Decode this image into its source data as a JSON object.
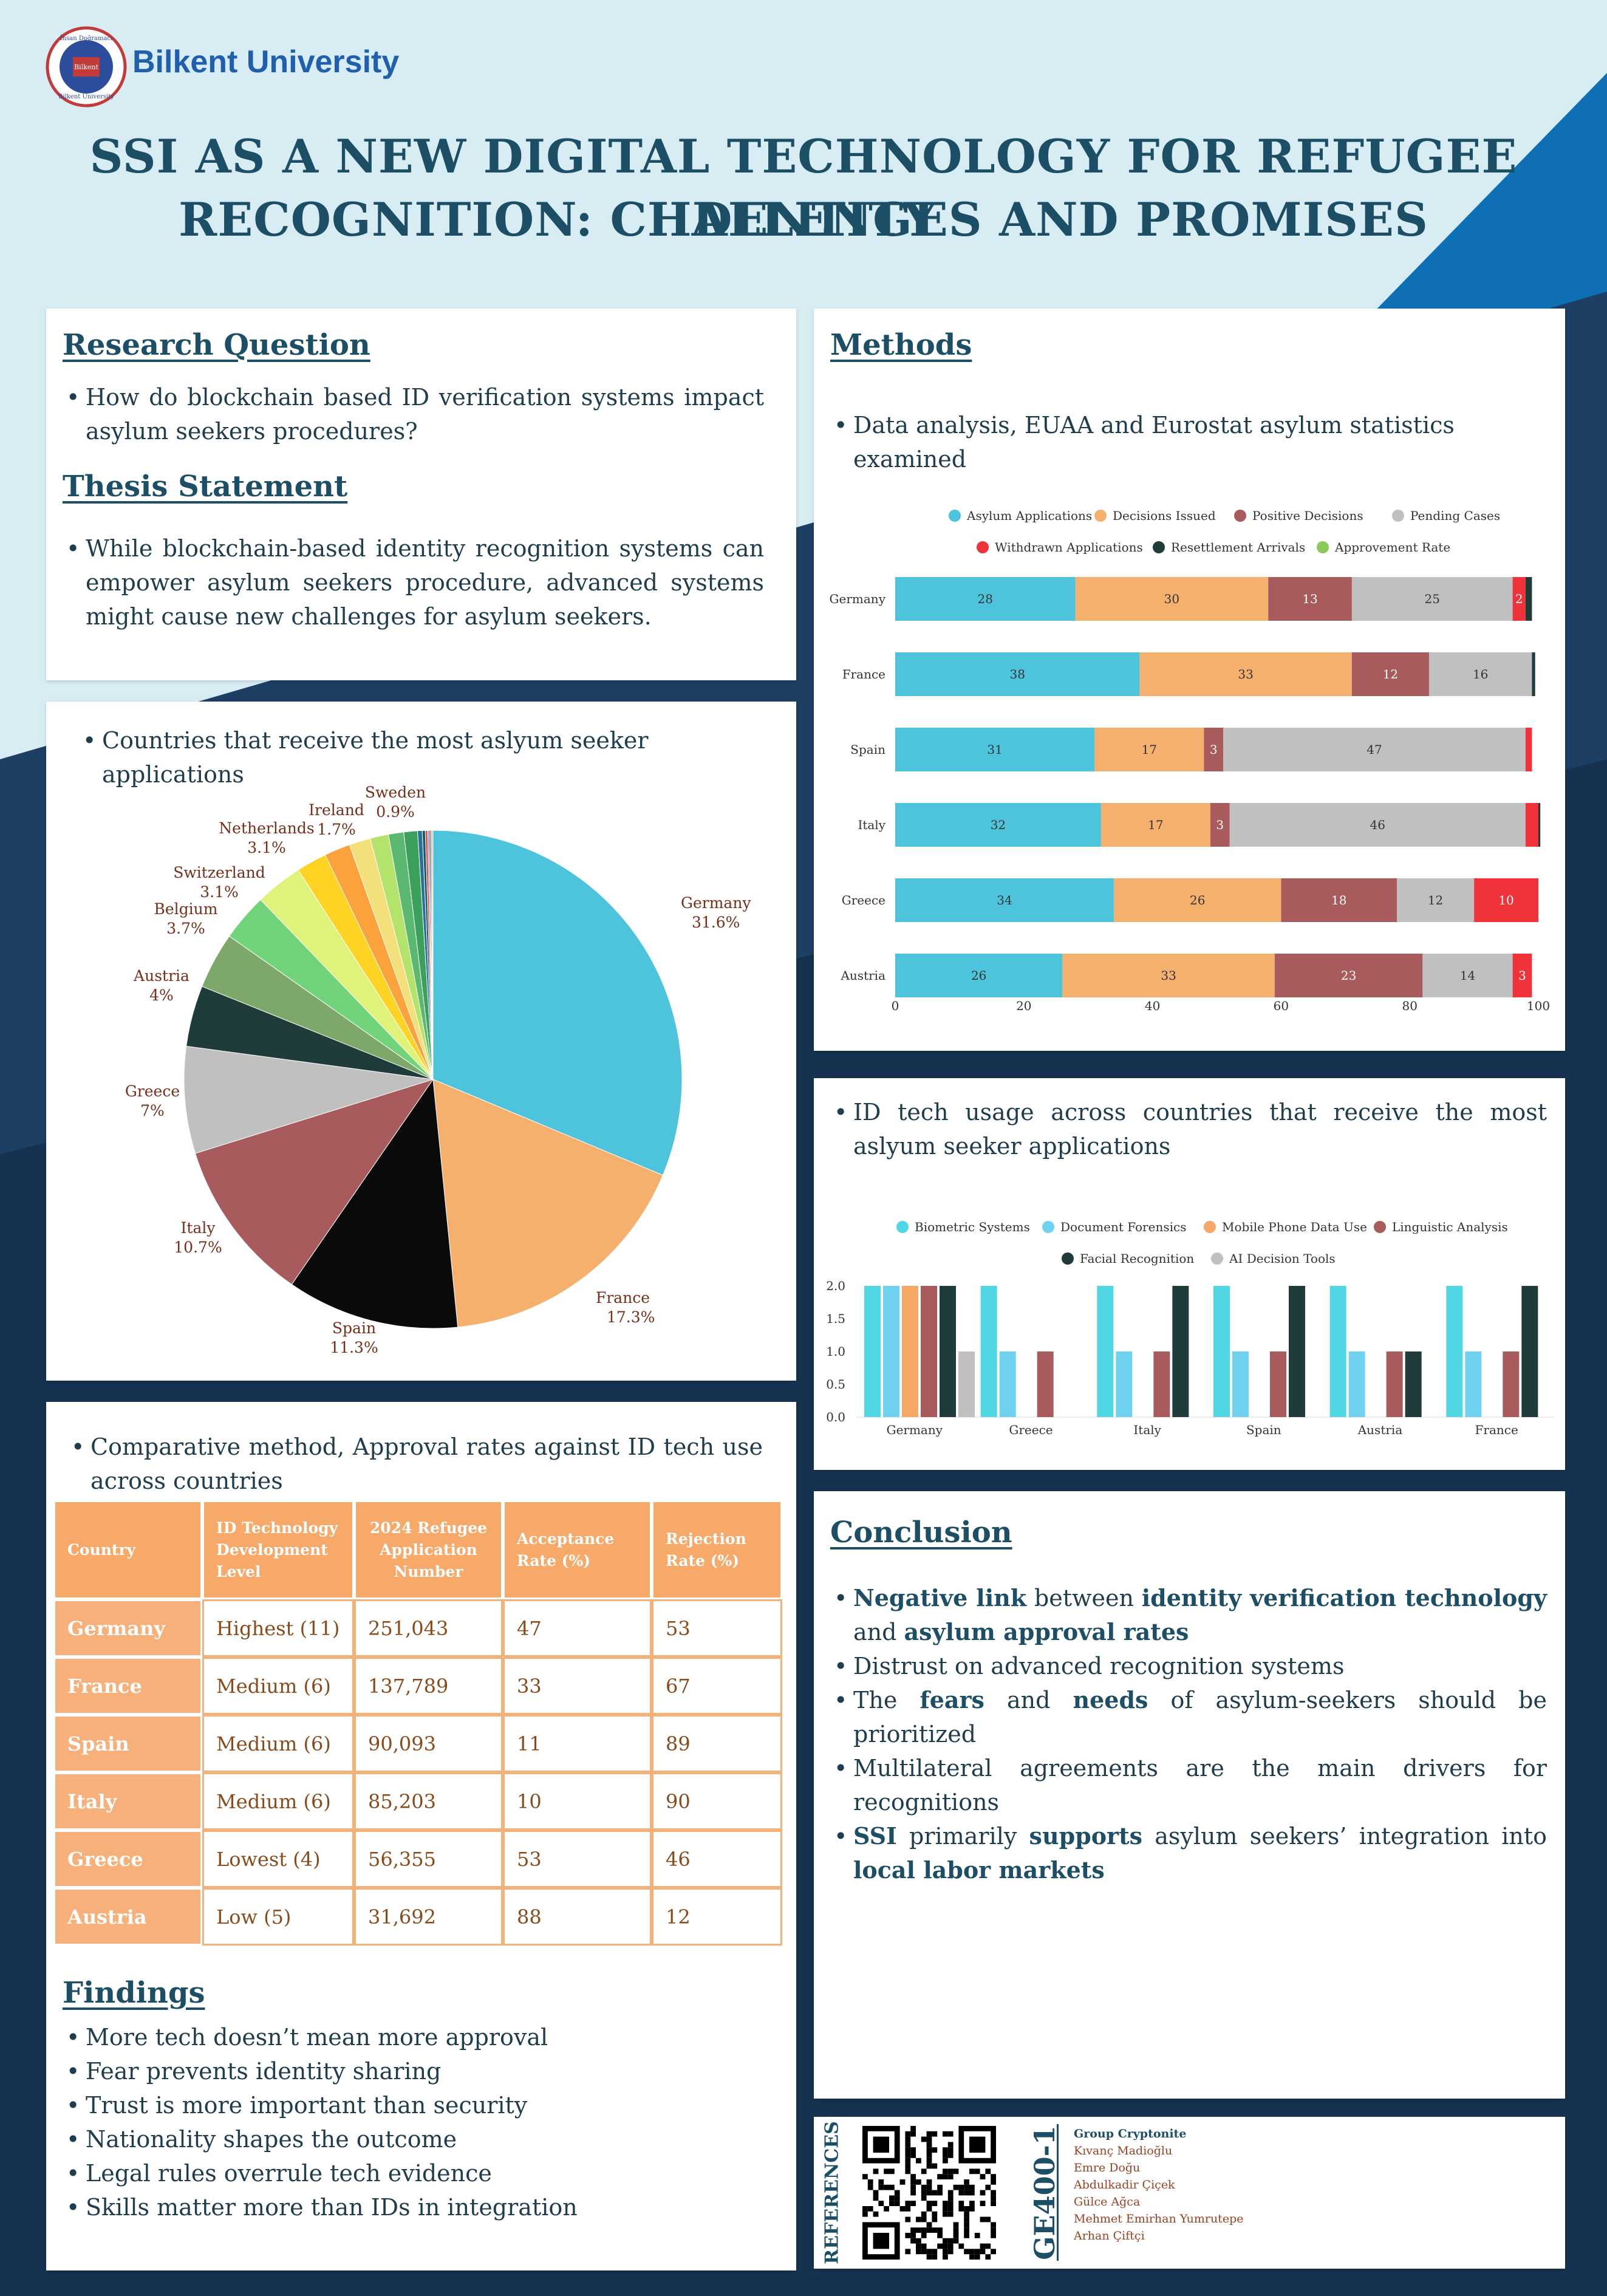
{
  "header": {
    "university": "Bilkent University",
    "logo_text": [
      "İhsan Doğramacı",
      "Bilkent",
      "Bilkent University"
    ],
    "title_lines": [
      "SSI AS A NEW DIGITAL TECHNOLOGY FOR REFUGEE IDENTITY",
      "RECOGNITION: CHALLENGES AND PROMISES"
    ]
  },
  "research": {
    "rq_heading": "Research Question",
    "rq_text": "How do blockchain based ID verification systems impact asylum seekers procedures?",
    "thesis_heading": "Thesis Statement",
    "thesis_text": "While blockchain-based identity recognition systems can empower asylum seekers procedure, advanced systems might cause new challenges for asylum seekers."
  },
  "pie_section": {
    "bullet": "Countries that receive the most aslyum seeker applications"
  },
  "methods": {
    "heading": "Methods",
    "bullet": "Data analysis, EUAA and Eurostat asylum statistics examined"
  },
  "idtech_section": {
    "bullet": "ID tech usage across countries that receive the most aslyum seeker applications"
  },
  "comparative": {
    "bullet": "Comparative method, Approval rates against ID tech use across countries",
    "headers": [
      "Country",
      "ID Technology Development Level",
      "2024 Refugee Application Number",
      "Acceptance Rate (%)",
      "Rejection Rate (%)"
    ],
    "rows": [
      [
        "Germany",
        "Highest (11)",
        "251,043",
        "47",
        "53"
      ],
      [
        "France",
        "Medium (6)",
        "137,789",
        "33",
        "67"
      ],
      [
        "Spain",
        "Medium (6)",
        "90,093",
        "11",
        "89"
      ],
      [
        "Italy",
        "Medium (6)",
        "85,203",
        "10",
        "90"
      ],
      [
        "Greece",
        "Lowest (4)",
        "56,355",
        "53",
        "46"
      ],
      [
        "Austria",
        "Low (5)",
        "31,692",
        "88",
        "12"
      ]
    ]
  },
  "findings": {
    "heading": "Findings",
    "items": [
      "More tech doesn’t mean more approval",
      "Fear prevents identity sharing",
      "Trust is more important than security",
      "Nationality shapes the outcome",
      "Legal rules overrule tech evidence",
      "Skills matter more than IDs in integration"
    ]
  },
  "conclusion": {
    "heading": "Conclusion",
    "items": [
      [
        {
          "t": "Negative link",
          "b": true
        },
        {
          "t": " between ",
          "b": false
        },
        {
          "t": "identity verification technology",
          "b": true
        },
        {
          "t": " and ",
          "b": false
        },
        {
          "t": "asylum approval rates",
          "b": true
        }
      ],
      [
        {
          "t": "Distrust on advanced recognition systems",
          "b": false
        }
      ],
      [
        {
          "t": "The ",
          "b": false
        },
        {
          "t": "fears",
          "b": true
        },
        {
          "t": " and ",
          "b": false
        },
        {
          "t": "needs",
          "b": true
        },
        {
          "t": " of asylum-seekers should be prioritized",
          "b": false
        }
      ],
      [
        {
          "t": "Multilateral agreements are the main drivers for recognitions",
          "b": false
        }
      ],
      [
        {
          "t": "SSI",
          "b": true
        },
        {
          "t": " primarily ",
          "b": false
        },
        {
          "t": "supports",
          "b": true
        },
        {
          "t": " asylum seekers’ integration into ",
          "b": false
        },
        {
          "t": "local labor markets",
          "b": true
        }
      ]
    ]
  },
  "references": {
    "label": "REFERENCES",
    "course": "GE400-1",
    "group": "Group Cryptonite",
    "names": [
      "Kıvanç Madioğlu",
      "Emre Doğu",
      "Abdulkadir Çiçek",
      "Gülce Ağca",
      "Mehmet Emirhan Yumrutepe",
      "Arhan Çiftçi"
    ]
  },
  "chart_data": [
    {
      "type": "pie",
      "slices": [
        {
          "label": "Germany",
          "value": 31.6,
          "color": "#4dc3dc"
        },
        {
          "label": "France",
          "value": 17.3,
          "color": "#f6b06e"
        },
        {
          "label": "Spain",
          "value": 11.3,
          "color": "#0a0a0a"
        },
        {
          "label": "Italy",
          "value": 10.7,
          "color": "#a85a5c"
        },
        {
          "label": "Greece",
          "value": 7,
          "color": "#c0c0c0"
        },
        {
          "label": "Austria",
          "value": 4,
          "color": "#1f3b3a"
        },
        {
          "label": "Belgium",
          "value": 3.7,
          "color": "#7ea86a"
        },
        {
          "label": "Switzerland",
          "value": 3.1,
          "color": "#72d47a"
        },
        {
          "label": "Netherlands",
          "value": 3.1,
          "color": "#dff27a"
        },
        {
          "label": "",
          "value": 2.0,
          "color": "#ffd324"
        },
        {
          "label": "Ireland",
          "value": 1.7,
          "color": "#fca23c"
        },
        {
          "label": "",
          "value": 1.4,
          "color": "#f3e07a"
        },
        {
          "label": "",
          "value": 1.2,
          "color": "#b3e36a"
        },
        {
          "label": "",
          "value": 1.0,
          "color": "#5bb870"
        },
        {
          "label": "Sweden",
          "value": 0.9,
          "color": "#3aa05a"
        },
        {
          "label": "",
          "value": 0.3,
          "color": "#2a6e9c"
        },
        {
          "label": "",
          "value": 0.2,
          "color": "#16596b"
        },
        {
          "label": "",
          "value": 0.15,
          "color": "#e04a3a"
        },
        {
          "label": "",
          "value": 0.1,
          "color": "#9a7ad0"
        },
        {
          "label": "",
          "value": 0.1,
          "color": "#555555"
        },
        {
          "label": "",
          "value": 0.08,
          "color": "#f57a2a"
        },
        {
          "label": "",
          "value": 0.07,
          "color": "#5ac0e0"
        }
      ],
      "labels_printed": [
        {
          "name": "Germany",
          "pct": "31.6%"
        },
        {
          "name": "France",
          "pct": "17.3%"
        },
        {
          "name": "Spain",
          "pct": "11.3%"
        },
        {
          "name": "Italy",
          "pct": "10.7%"
        },
        {
          "name": "Greece",
          "pct": "7%"
        },
        {
          "name": "Austria",
          "pct": "4%"
        },
        {
          "name": "Belgium",
          "pct": "3.7%"
        },
        {
          "name": "Switzerland",
          "pct": "3.1%"
        },
        {
          "name": "Netherlands",
          "pct": "3.1%"
        },
        {
          "name": "Ireland",
          "pct": "1.7%"
        },
        {
          "name": "Sweden",
          "pct": "0.9%"
        }
      ]
    },
    {
      "type": "bar",
      "orientation": "horizontal-stacked",
      "categories": [
        "Germany",
        "France",
        "Spain",
        "Italy",
        "Greece",
        "Austria"
      ],
      "series": [
        {
          "name": "Asylum Applications",
          "color": "#4dc3dc",
          "values": [
            28,
            38,
            31,
            32,
            34,
            26
          ]
        },
        {
          "name": "Decisions Issued",
          "color": "#f6b06e",
          "values": [
            30,
            33,
            17,
            17,
            26,
            33
          ]
        },
        {
          "name": "Positive Decisions",
          "color": "#a85a5c",
          "values": [
            13,
            12,
            3,
            3,
            18,
            23
          ]
        },
        {
          "name": "Pending Cases",
          "color": "#c0c0c0",
          "values": [
            25,
            16,
            47,
            46,
            12,
            14
          ]
        },
        {
          "name": "Withdrawn Applications",
          "color": "#f0333a",
          "values": [
            2,
            0,
            1,
            2,
            10,
            3
          ]
        },
        {
          "name": "Resettlement Arrivals",
          "color": "#1f3b3a",
          "values": [
            1,
            0.5,
            0,
            0.3,
            0,
            0
          ]
        },
        {
          "name": "Approvement Rate",
          "color": "#8cc85a",
          "values": [
            0,
            0,
            0,
            0,
            0,
            0
          ]
        }
      ],
      "show_labels": [
        [
          true,
          true,
          true,
          true,
          true,
          false,
          false
        ],
        [
          true,
          true,
          true,
          true,
          false,
          false,
          false
        ],
        [
          true,
          true,
          true,
          true,
          false,
          false,
          false
        ],
        [
          true,
          true,
          true,
          true,
          false,
          false,
          false
        ],
        [
          true,
          true,
          true,
          true,
          true,
          false,
          false
        ],
        [
          true,
          true,
          true,
          true,
          true,
          false,
          false
        ]
      ],
      "xlim": [
        0,
        100
      ],
      "xticks": [
        0,
        20,
        40,
        60,
        80,
        100
      ],
      "legend": "top"
    },
    {
      "type": "bar",
      "orientation": "vertical-grouped",
      "categories": [
        "Germany",
        "Greece",
        "Italy",
        "Spain",
        "Austria",
        "France"
      ],
      "series": [
        {
          "name": "Biometric Systems",
          "color": "#4fd8e4",
          "values": [
            2,
            2,
            2,
            2,
            2,
            2
          ]
        },
        {
          "name": "Document Forensics",
          "color": "#6fd2f0",
          "values": [
            2,
            1,
            1,
            1,
            1,
            1
          ]
        },
        {
          "name": "Mobile Phone Data Use",
          "color": "#f6a766",
          "values": [
            2,
            0,
            0,
            0,
            0,
            0
          ]
        },
        {
          "name": "Linguistic Analysis",
          "color": "#a85a5c",
          "values": [
            2,
            1,
            1,
            1,
            1,
            1
          ]
        },
        {
          "name": "Facial Recognition",
          "color": "#1f3b3a",
          "values": [
            2,
            0,
            2,
            2,
            1,
            2
          ]
        },
        {
          "name": "AI Decision Tools",
          "color": "#c0c0c0",
          "values": [
            1,
            0,
            0,
            0,
            0,
            0
          ]
        }
      ],
      "ylim": [
        0,
        2
      ],
      "yticks": [
        "0.0",
        "0.5",
        "1.0",
        "1.5",
        "2.0"
      ],
      "legend": "top"
    }
  ]
}
